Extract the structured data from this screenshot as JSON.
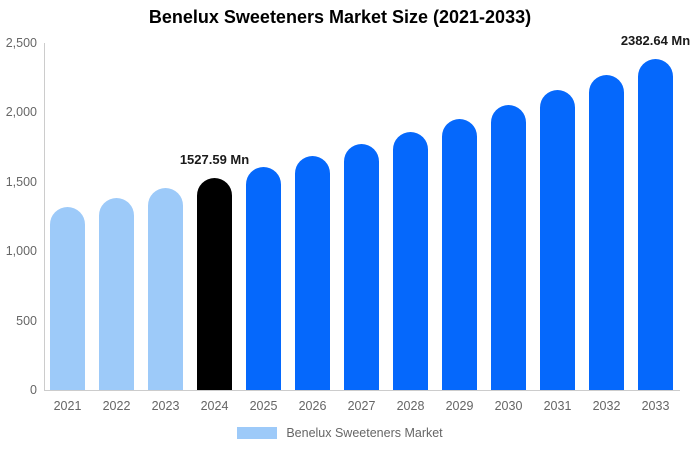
{
  "title": "Benelux Sweeteners Market Size (2021-2033)",
  "chart_data": {
    "type": "bar",
    "title": "Benelux Sweeteners Market Size (2021-2033)",
    "categories": [
      "2021",
      "2022",
      "2023",
      "2024",
      "2025",
      "2026",
      "2027",
      "2028",
      "2029",
      "2030",
      "2031",
      "2032",
      "2033"
    ],
    "values": [
      1317.5,
      1384.1,
      1454.2,
      1527.59,
      1604.9,
      1686.2,
      1771.5,
      1861.2,
      1955.4,
      2054.4,
      2158.4,
      2267.6,
      2382.64
    ],
    "bar_colors": [
      "#9DCAF9",
      "#9DCAF9",
      "#9DCAF9",
      "#000000",
      "#0568FC",
      "#0568FC",
      "#0568FC",
      "#0568FC",
      "#0568FC",
      "#0568FC",
      "#0568FC",
      "#0568FC",
      "#0568FC"
    ],
    "annotations": [
      {
        "category": "2024",
        "text": "1527.59 Mn"
      },
      {
        "category": "2033",
        "text": "2382.64 Mn"
      }
    ],
    "xlabel": "",
    "ylabel": "",
    "ylim": [
      0,
      2500
    ],
    "yticks": [
      {
        "value": 2500,
        "label": "2,500"
      },
      {
        "value": 2000,
        "label": "2,000"
      },
      {
        "value": 1500,
        "label": "1,500"
      },
      {
        "value": 1000,
        "label": "1,000"
      },
      {
        "value": 500,
        "label": "500"
      },
      {
        "value": 0,
        "label": "0"
      }
    ],
    "grid": false,
    "legend": {
      "position": "bottom",
      "items": [
        {
          "label": "Benelux Sweeteners Market",
          "color": "#9DCAF9"
        }
      ]
    },
    "axis_color": "#cccccc",
    "tick_text_color": "#666666",
    "annotation_text_color": "#1a1a1a"
  }
}
